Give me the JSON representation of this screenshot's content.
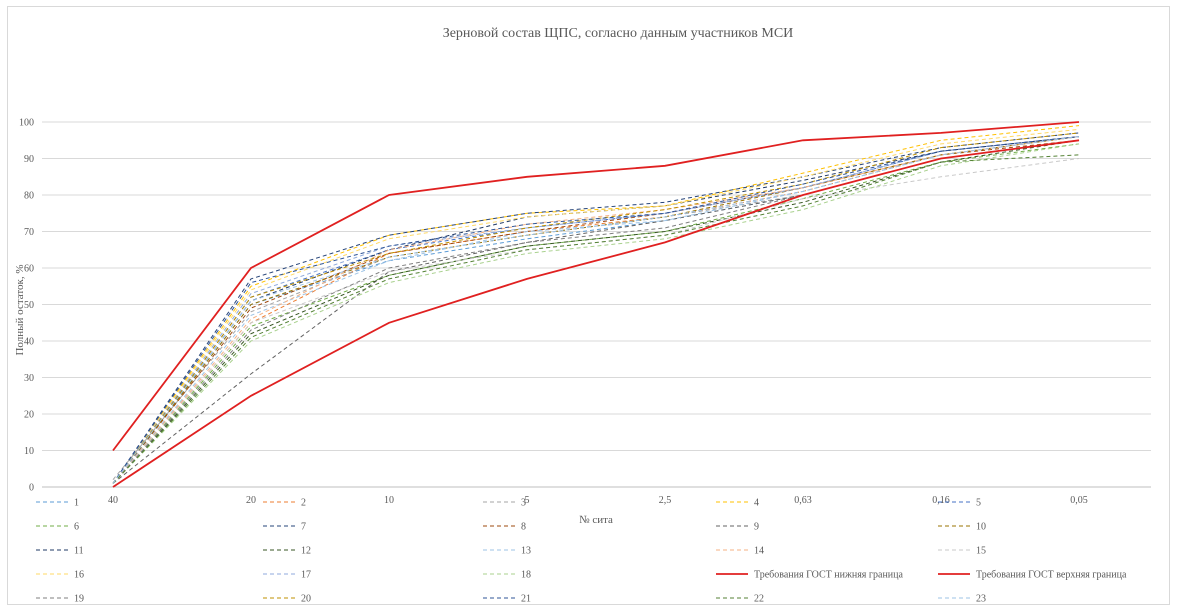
{
  "chart_data": {
    "type": "line",
    "title": "Зерновой состав ЩПС, согласно данным участников МСИ",
    "xlabel": "№ сита",
    "ylabel": "Полный остаток, %",
    "ylim": [
      0,
      100
    ],
    "yticks": [
      0,
      10,
      20,
      30,
      40,
      50,
      60,
      70,
      80,
      90,
      100
    ],
    "categories": [
      "40",
      "20",
      "10",
      "5",
      "2,5",
      "0,63",
      "0,16",
      "0,05"
    ],
    "grid": true,
    "legend_position": "bottom",
    "series": [
      {
        "name": "1",
        "color": "#5b9bd5",
        "dashed": true,
        "values": [
          1,
          50,
          62,
          68,
          73,
          80,
          90,
          95
        ]
      },
      {
        "name": "2",
        "color": "#ed7d31",
        "dashed": true,
        "values": [
          1,
          45,
          64,
          70,
          74,
          81,
          91,
          96
        ]
      },
      {
        "name": "3",
        "color": "#a5a5a5",
        "dashed": true,
        "values": [
          2,
          48,
          63,
          69,
          74,
          80,
          90,
          95
        ]
      },
      {
        "name": "4",
        "color": "#ffc000",
        "dashed": true,
        "values": [
          1,
          55,
          69,
          75,
          77,
          86,
          95,
          99
        ]
      },
      {
        "name": "5",
        "color": "#4472c4",
        "dashed": true,
        "values": [
          1,
          52,
          65,
          71,
          75,
          82,
          92,
          96
        ]
      },
      {
        "name": "6",
        "color": "#70ad47",
        "dashed": true,
        "values": [
          1,
          44,
          58,
          66,
          70,
          79,
          89,
          94
        ]
      },
      {
        "name": "7",
        "color": "#264478",
        "dashed": true,
        "values": [
          1,
          57,
          69,
          75,
          78,
          85,
          93,
          97
        ]
      },
      {
        "name": "8",
        "color": "#9e480e",
        "dashed": true,
        "values": [
          1,
          49,
          64,
          70,
          75,
          82,
          91,
          95
        ]
      },
      {
        "name": "9",
        "color": "#636363",
        "dashed": true,
        "values": [
          1,
          31,
          59,
          67,
          73,
          80,
          90,
          95
        ]
      },
      {
        "name": "10",
        "color": "#997300",
        "dashed": true,
        "values": [
          1,
          50,
          63,
          69,
          74,
          82,
          91,
          96
        ]
      },
      {
        "name": "11",
        "color": "#1f3864",
        "dashed": true,
        "values": [
          1,
          51,
          65,
          74,
          77,
          84,
          92,
          96
        ]
      },
      {
        "name": "12",
        "color": "#375623",
        "dashed": true,
        "values": [
          1,
          42,
          58,
          66,
          70,
          78,
          89,
          95
        ]
      },
      {
        "name": "13",
        "color": "#9dc3e6",
        "dashed": true,
        "values": [
          1,
          47,
          62,
          70,
          73,
          81,
          91,
          96
        ]
      },
      {
        "name": "14",
        "color": "#f4b183",
        "dashed": true,
        "values": [
          1,
          46,
          65,
          72,
          76,
          82,
          91,
          96
        ]
      },
      {
        "name": "15",
        "color": "#c9c9c9",
        "dashed": true,
        "values": [
          1,
          45,
          59,
          65,
          69,
          79,
          85,
          90
        ]
      },
      {
        "name": "16",
        "color": "#ffd966",
        "dashed": true,
        "values": [
          1,
          54,
          68,
          74,
          77,
          85,
          94,
          98
        ]
      },
      {
        "name": "17",
        "color": "#8faadc",
        "dashed": true,
        "values": [
          1,
          53,
          66,
          71,
          75,
          82,
          92,
          96
        ]
      },
      {
        "name": "18",
        "color": "#a9d18e",
        "dashed": true,
        "values": [
          1,
          40,
          56,
          64,
          68,
          76,
          88,
          94
        ]
      },
      {
        "name": "Требования ГОСТ нижняя граница",
        "color": "#e02020",
        "dashed": false,
        "values": [
          0,
          25,
          45,
          57,
          67,
          80,
          90,
          95
        ]
      },
      {
        "name": "Требования ГОСТ верхняя граница",
        "color": "#e02020",
        "dashed": false,
        "values": [
          10,
          60,
          80,
          85,
          88,
          95,
          97,
          100
        ]
      },
      {
        "name": "19",
        "color": "#7f7f7f",
        "dashed": true,
        "values": [
          1,
          43,
          60,
          67,
          71,
          80,
          90,
          95
        ]
      },
      {
        "name": "20",
        "color": "#bf9000",
        "dashed": true,
        "values": [
          1,
          52,
          64,
          71,
          76,
          83,
          93,
          97
        ]
      },
      {
        "name": "21",
        "color": "#2f5597",
        "dashed": true,
        "values": [
          1,
          56,
          66,
          72,
          75,
          83,
          92,
          96
        ]
      },
      {
        "name": "22",
        "color": "#548235",
        "dashed": true,
        "values": [
          1,
          41,
          57,
          65,
          69,
          77,
          89,
          91
        ]
      },
      {
        "name": "23",
        "color": "#9dc3e6",
        "dashed": true,
        "values": [
          1,
          51,
          63,
          69,
          74,
          81,
          91,
          96
        ]
      }
    ]
  }
}
